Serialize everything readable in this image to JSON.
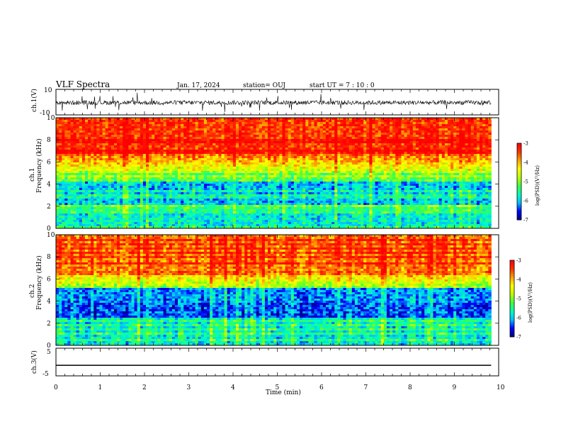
{
  "header": {
    "title": "VLF Spectra",
    "date": "Jan. 17, 2024",
    "station": "station= OUJ",
    "start": "start  UT =   7 : 10 : 0"
  },
  "chart_data": [
    {
      "type": "line",
      "title": "",
      "ylabel": "ch.1(V)",
      "ylim": [
        -10,
        10
      ],
      "yticks": [
        "10",
        "-10"
      ],
      "x_range_min": [
        0,
        9.83
      ],
      "series": [
        {
          "values_V_mean": -0.4,
          "noise_amplitude_V": 3.5
        }
      ]
    },
    {
      "type": "heatmap",
      "ylabel_line1": "ch.1",
      "ylabel_line2": "Frequency (kHz)",
      "ylim": [
        0,
        10
      ],
      "yticks": [
        "0",
        "2",
        "4",
        "6",
        "8",
        "10"
      ],
      "x_range_min": [
        0,
        9.83
      ],
      "colorbar": {
        "label": "log(PSD)(V²/Hz)",
        "ticks": [
          "-3",
          "-4",
          "-5",
          "-6",
          "-7"
        ],
        "range": [
          -7,
          -3
        ]
      }
    },
    {
      "type": "heatmap",
      "ylabel_line1": "ch.2",
      "ylabel_line2": "Frequency (kHz)",
      "ylim": [
        0,
        10
      ],
      "yticks": [
        "0",
        "2",
        "4",
        "6",
        "8",
        "10"
      ],
      "x_range_min": [
        0,
        9.83
      ],
      "colorbar": {
        "label": "log(PSD)(V²/Hz)",
        "ticks": [
          "-3",
          "-4",
          "-5",
          "-6",
          "-7"
        ],
        "range": [
          -7,
          -3
        ]
      }
    },
    {
      "type": "line",
      "ylabel": "ch.3(V)",
      "ylim": [
        -5,
        5
      ],
      "yticks": [
        "5",
        "0",
        "-5"
      ],
      "x_range_min": [
        0,
        9.83
      ],
      "series": [
        {
          "values_V_constant": -1.2
        }
      ]
    }
  ],
  "xaxis": {
    "label": "Time  (min)",
    "ticks": [
      "0",
      "1",
      "2",
      "3",
      "4",
      "5",
      "6",
      "7",
      "8",
      "9",
      "10"
    ],
    "range": [
      0,
      10
    ]
  },
  "colors": {
    "colormap": [
      "#00007f",
      "#0000ff",
      "#00bfff",
      "#00ffc0",
      "#40ff40",
      "#c0ff00",
      "#ffff00",
      "#ffa000",
      "#ff3000",
      "#ff0000"
    ]
  }
}
